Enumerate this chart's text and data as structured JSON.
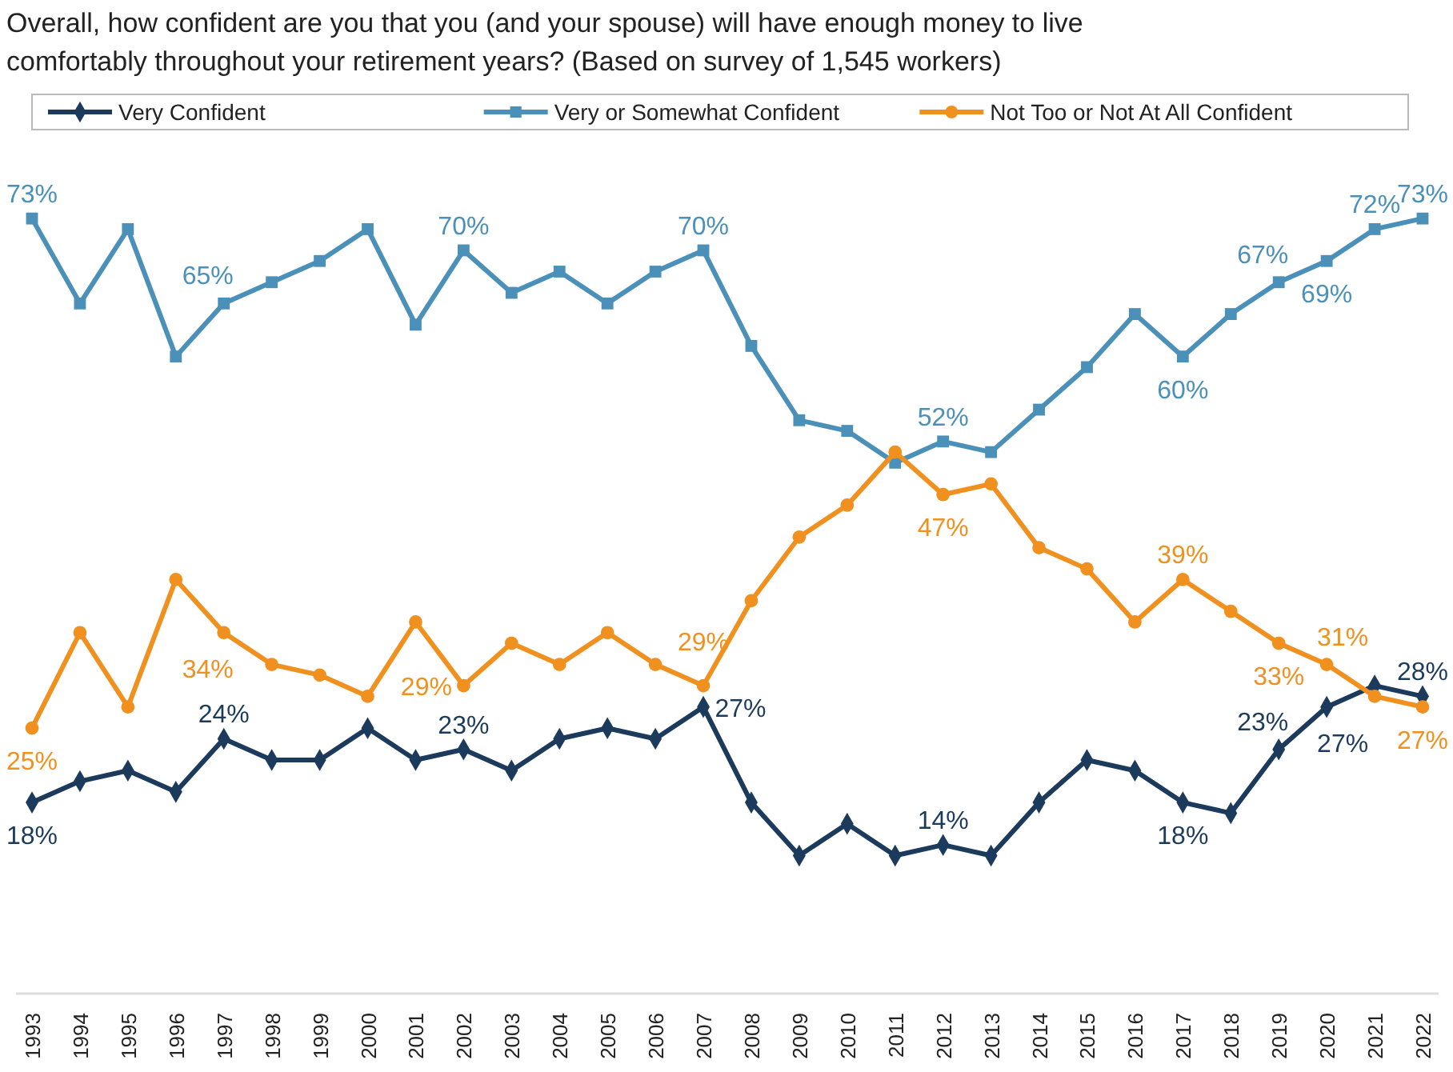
{
  "chart_data": {
    "type": "line",
    "title": "Overall, how confident are you that you (and your spouse) will have enough money to live comfortably throughout your retirement years? (Based on survey of 1,545 workers)",
    "categories": [
      "1993",
      "1994",
      "1995",
      "1996",
      "1997",
      "1998",
      "1999",
      "2000",
      "2001",
      "2002",
      "2003",
      "2004",
      "2005",
      "2006",
      "2007",
      "2008",
      "2009",
      "2010",
      "2011",
      "2012",
      "2013",
      "2014",
      "2015",
      "2016",
      "2017",
      "2018",
      "2019",
      "2020",
      "2021",
      "2022"
    ],
    "legend": "top",
    "line_style": "solid",
    "series": [
      {
        "name": "Very Confident",
        "color": "#1b3a5c",
        "marker": "diamond",
        "values": [
          18,
          20,
          21,
          19,
          24,
          22,
          22,
          25,
          22,
          23,
          21,
          24,
          25,
          24,
          27,
          18,
          13,
          16,
          13,
          14,
          13,
          18,
          22,
          21,
          18,
          17,
          23,
          27,
          29,
          28
        ],
        "value_labels": [
          "18%",
          null,
          null,
          null,
          "24%",
          null,
          null,
          null,
          null,
          "23%",
          null,
          null,
          null,
          null,
          "27%",
          null,
          null,
          null,
          null,
          "14%",
          null,
          null,
          null,
          null,
          "18%",
          null,
          "23%",
          "27%",
          null,
          "28%"
        ]
      },
      {
        "name": "Very or Somewhat Confident",
        "color": "#4a90b8",
        "marker": "square",
        "values": [
          73,
          65,
          72,
          60,
          65,
          67,
          69,
          72,
          63,
          70,
          66,
          68,
          65,
          68,
          70,
          61,
          54,
          53,
          50,
          52,
          51,
          55,
          59,
          64,
          60,
          64,
          67,
          69,
          72,
          73
        ],
        "value_labels": [
          "73%",
          null,
          null,
          null,
          "65%",
          null,
          null,
          null,
          null,
          "70%",
          null,
          null,
          null,
          null,
          "70%",
          null,
          null,
          null,
          null,
          "52%",
          null,
          null,
          null,
          null,
          "60%",
          null,
          "67%",
          "69%",
          "72%",
          "73%"
        ]
      },
      {
        "name": "Not Too or Not At All Confident",
        "color": "#f0901e",
        "marker": "circle",
        "values": [
          25,
          34,
          27,
          39,
          34,
          31,
          30,
          28,
          35,
          29,
          33,
          31,
          34,
          31,
          29,
          37,
          43,
          46,
          51,
          47,
          48,
          42,
          40,
          35,
          39,
          36,
          33,
          31,
          28,
          27
        ],
        "value_labels": [
          "25%",
          null,
          null,
          null,
          "34%",
          null,
          null,
          null,
          null,
          "29%",
          null,
          null,
          null,
          null,
          "29%",
          null,
          null,
          null,
          null,
          "47%",
          null,
          null,
          null,
          null,
          "39%",
          null,
          "33%",
          "31%",
          null,
          "27%"
        ]
      }
    ]
  }
}
